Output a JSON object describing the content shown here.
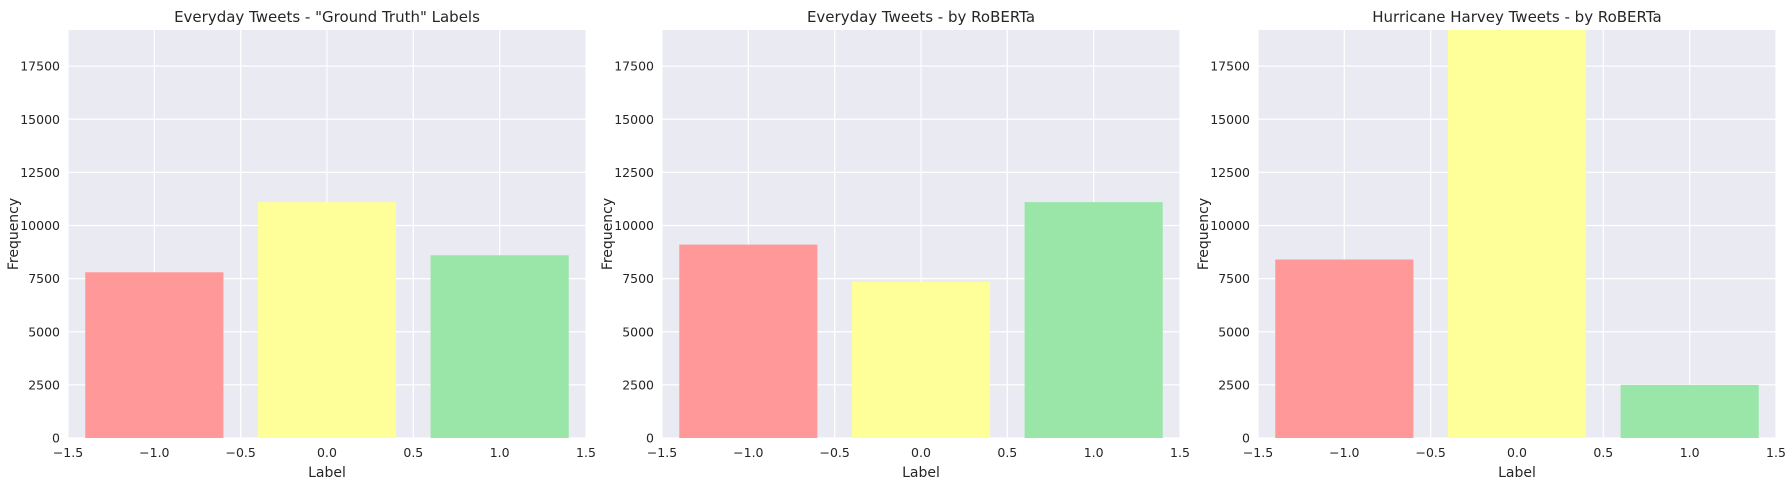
{
  "colors": {
    "background": "#eaeaf2",
    "grid": "#ffffff",
    "negative": "#ff9999",
    "neutral": "#ffff99",
    "positive": "#99e6a8"
  },
  "chart_data": [
    {
      "type": "bar",
      "title": "Everyday Tweets - \"Ground Truth\" Labels",
      "xlabel": "Label",
      "ylabel": "Frequency",
      "categories": [
        -1.0,
        0.0,
        1.0
      ],
      "values": [
        7800,
        11100,
        8600
      ],
      "bar_colors": [
        "#ff9999",
        "#ffff99",
        "#99e6a8"
      ],
      "xlim": [
        -1.5,
        1.5
      ],
      "ylim": [
        0,
        19200
      ],
      "xticks": [
        -1.5,
        -1.0,
        -0.5,
        0.0,
        0.5,
        1.0,
        1.5
      ],
      "xtick_labels": [
        "−1.5",
        "−1.0",
        "−0.5",
        "0.0",
        "0.5",
        "1.0",
        "1.5"
      ],
      "yticks": [
        0,
        2500,
        5000,
        7500,
        10000,
        12500,
        15000,
        17500
      ],
      "ytick_labels": [
        "0",
        "2500",
        "5000",
        "7500",
        "10000",
        "12500",
        "15000",
        "17500"
      ],
      "grid": true
    },
    {
      "type": "bar",
      "title": "Everyday Tweets - by RoBERTa",
      "xlabel": "Label",
      "ylabel": "Frequency",
      "categories": [
        -1.0,
        0.0,
        1.0
      ],
      "values": [
        9100,
        7350,
        11100
      ],
      "bar_colors": [
        "#ff9999",
        "#ffff99",
        "#99e6a8"
      ],
      "xlim": [
        -1.5,
        1.5
      ],
      "ylim": [
        0,
        19200
      ],
      "xticks": [
        -1.5,
        -1.0,
        -0.5,
        0.0,
        0.5,
        1.0,
        1.5
      ],
      "xtick_labels": [
        "−1.5",
        "−1.0",
        "−0.5",
        "0.0",
        "0.5",
        "1.0",
        "1.5"
      ],
      "yticks": [
        0,
        2500,
        5000,
        7500,
        10000,
        12500,
        15000,
        17500
      ],
      "ytick_labels": [
        "0",
        "2500",
        "5000",
        "7500",
        "10000",
        "12500",
        "15000",
        "17500"
      ],
      "grid": true
    },
    {
      "type": "bar",
      "title": "Hurricane Harvey Tweets - by RoBERTa",
      "xlabel": "Label",
      "ylabel": "Frequency",
      "categories": [
        -1.0,
        0.0,
        1.0
      ],
      "values": [
        8400,
        19300,
        2500
      ],
      "bar_colors": [
        "#ff9999",
        "#ffff99",
        "#99e6a8"
      ],
      "xlim": [
        -1.5,
        1.5
      ],
      "ylim": [
        0,
        19200
      ],
      "xticks": [
        -1.5,
        -1.0,
        -0.5,
        0.0,
        0.5,
        1.0,
        1.5
      ],
      "xtick_labels": [
        "−1.5",
        "−1.0",
        "−0.5",
        "0.0",
        "0.5",
        "1.0",
        "1.5"
      ],
      "yticks": [
        0,
        2500,
        5000,
        7500,
        10000,
        12500,
        15000,
        17500
      ],
      "ytick_labels": [
        "0",
        "2500",
        "5000",
        "7500",
        "10000",
        "12500",
        "15000",
        "17500"
      ],
      "grid": true
    }
  ]
}
